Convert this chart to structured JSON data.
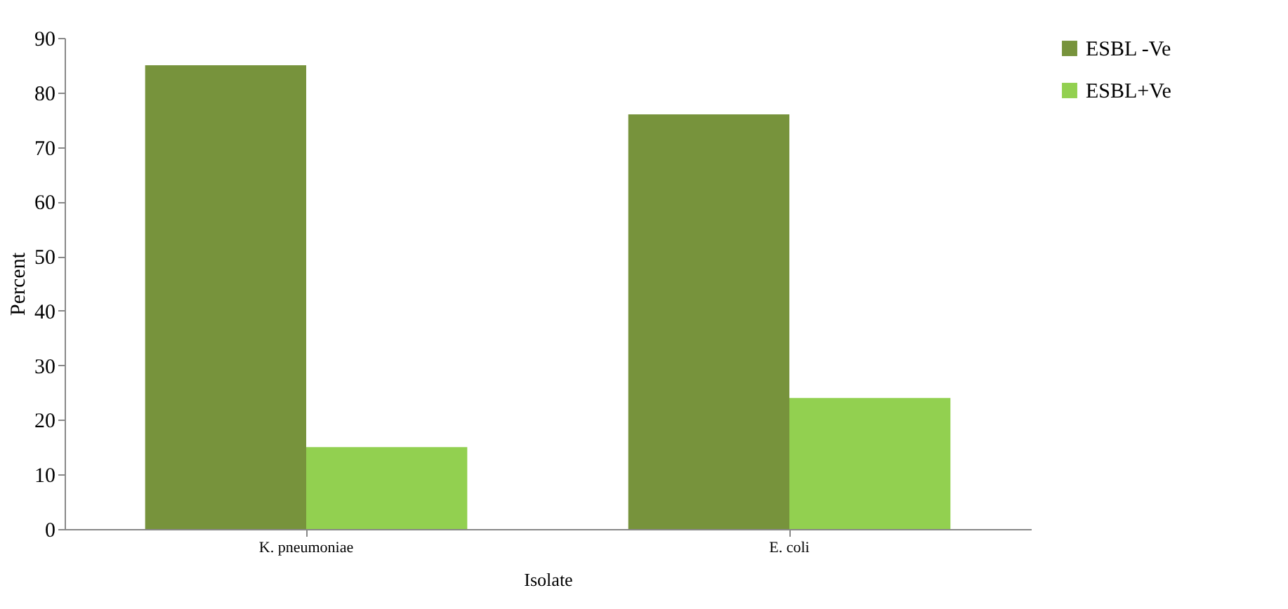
{
  "chart_data": {
    "type": "bar",
    "xlabel": "Isolate",
    "ylabel": "Percent",
    "categories": [
      "K. pneumoniae",
      "E. coli"
    ],
    "series": [
      {
        "name": "ESBL -Ve",
        "color": "#77933c",
        "values": [
          85,
          76
        ]
      },
      {
        "name": "ESBL+Ve",
        "color": "#92d050",
        "values": [
          15,
          24
        ]
      }
    ],
    "ylim": [
      0,
      90
    ],
    "yticks": [
      0,
      10,
      20,
      30,
      40,
      50,
      60,
      70,
      80,
      90
    ],
    "grid": false,
    "legend": "right"
  }
}
